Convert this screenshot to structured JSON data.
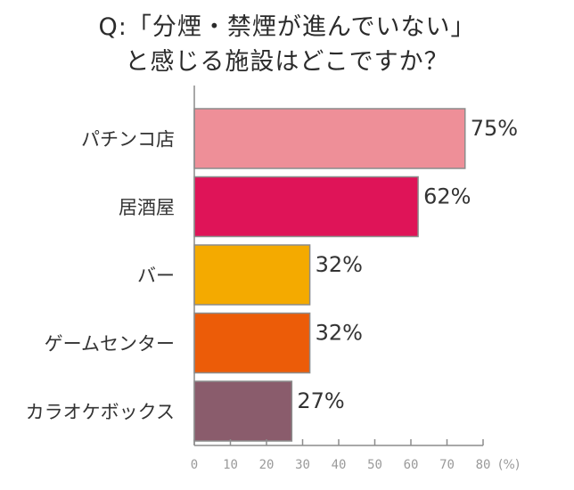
{
  "chart_data": {
    "type": "bar",
    "orientation": "horizontal",
    "title_lines": [
      "Q:「分煙・禁煙が進んでいない」",
      "と感じる施設はどこですか？"
    ],
    "categories": [
      "パチンコ店",
      "居酒屋",
      "バー",
      "ゲームセンター",
      "カラオケボックス"
    ],
    "values": [
      75,
      62,
      32,
      32,
      27
    ],
    "value_labels": [
      "75%",
      "62%",
      "32%",
      "32%",
      "27%"
    ],
    "colors": [
      "#ee8f98",
      "#df1458",
      "#f4aa00",
      "#ec5c08",
      "#8a5c6c"
    ],
    "xlim": [
      0,
      80
    ],
    "xticks": [
      0,
      10,
      20,
      30,
      40,
      50,
      60,
      70,
      80
    ],
    "x_unit": "(%)",
    "grid": false,
    "legend": "none"
  }
}
